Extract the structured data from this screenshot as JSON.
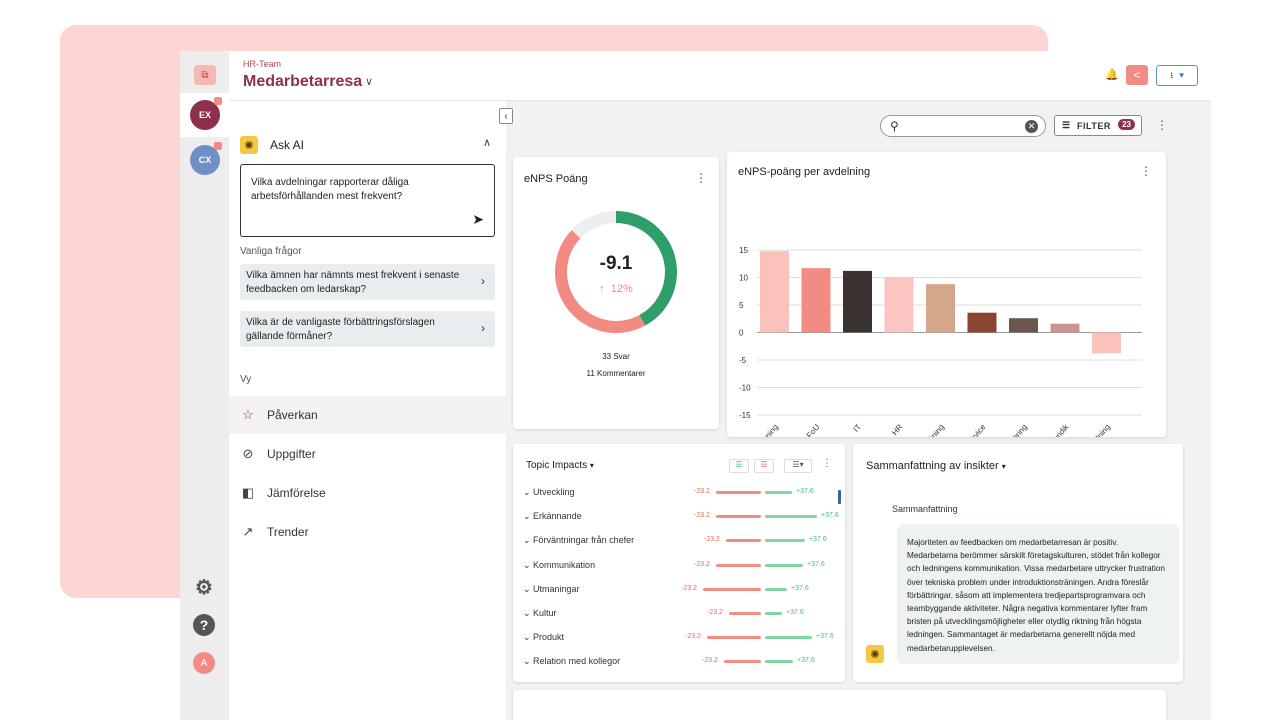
{
  "rail": {
    "workspaces": [
      {
        "initials": "EX",
        "color": "#8e2f4b"
      },
      {
        "initials": "CX",
        "color": "#6f8fc7"
      }
    ],
    "avatar_initial": "A",
    "icons": [
      "app-logo-icon",
      "more-vertical-icon",
      "settings-gear-icon",
      "help-icon"
    ]
  },
  "header": {
    "breadcrumb": "HR-Team",
    "title": "Medarbetarresa",
    "icons": [
      "bell-icon",
      "share-icon",
      "download-icon"
    ]
  },
  "ask_ai": {
    "label": "Ask AI",
    "question": "Vilka avdelningar rapporterar dåliga arbetsförhållanden mest frekvent?",
    "faq_title": "Vanliga frågor",
    "faqs": [
      "Vilka ämnen har nämnts mest frekvent i senaste feedbacken om ledarskap?",
      "Vilka är de vanligaste förbättringsförslagen gällande förmåner?"
    ]
  },
  "view": {
    "title": "Vy",
    "items": [
      {
        "label": "Påverkan",
        "icon": "star-icon",
        "active": true
      },
      {
        "label": "Uppgifter",
        "icon": "check-circle-icon",
        "active": false
      },
      {
        "label": "Jämförelse",
        "icon": "compare-icon",
        "active": false
      },
      {
        "label": "Trender",
        "icon": "trend-icon",
        "active": false
      }
    ]
  },
  "toolbar": {
    "filter_label": "FILTER",
    "filter_count": "23"
  },
  "enps": {
    "title": "eNPS Poäng",
    "score": "-9.1",
    "change": "12%",
    "responses": "33 Svar",
    "comments": "11 Kommentarer",
    "donut": {
      "green": 0.42,
      "red": 0.45,
      "grey": 0.13
    },
    "colors": {
      "green": "#2e9e6a",
      "red": "#f28b82",
      "grey": "#eeeeee"
    }
  },
  "chart_data": {
    "type": "bar",
    "title": "eNPS-poäng per avdelning",
    "categories": [
      "Redovisning",
      "FoU",
      "IT",
      "HR",
      "Försäljning",
      "Kund-service",
      "Marknads-föring",
      "Juridik",
      "Ledning"
    ],
    "values": [
      14.8,
      11.7,
      11.2,
      10.1,
      8.8,
      3.6,
      2.6,
      1.6,
      -3.8
    ],
    "colors": [
      "#fbc2bc",
      "#f28b82",
      "#3a3330",
      "#fbc6c2",
      "#d4a78a",
      "#8a4633",
      "#6e5550",
      "#c99591",
      "#fbc2bc"
    ],
    "ylim": [
      -15,
      15
    ],
    "yticks": [
      15,
      10,
      5,
      0,
      -5,
      -10,
      -15
    ],
    "grid": true
  },
  "topics": {
    "title": "Topic Impacts",
    "rows": [
      {
        "label": "Utveckling",
        "neg": "-23.2",
        "pos": "+37.6",
        "neg_frac": 0.45,
        "pos_frac": 0.27
      },
      {
        "label": "Erkännande",
        "neg": "-23.2",
        "pos": "+37.6",
        "neg_frac": 0.45,
        "pos_frac": 0.52
      },
      {
        "label": "Förväntningar från chefer",
        "neg": "-23.2",
        "pos": "+37.6",
        "neg_frac": 0.35,
        "pos_frac": 0.4
      },
      {
        "label": "Kommunikation",
        "neg": "-23.2",
        "pos": "+37.6",
        "neg_frac": 0.45,
        "pos_frac": 0.38
      },
      {
        "label": "Utmaningar",
        "neg": "-23.2",
        "pos": "+37.6",
        "neg_frac": 0.58,
        "pos_frac": 0.22
      },
      {
        "label": "Kultur",
        "neg": "-23.2",
        "pos": "+37.6",
        "neg_frac": 0.32,
        "pos_frac": 0.17
      },
      {
        "label": "Produkt",
        "neg": "-23.2",
        "pos": "+37.6",
        "neg_frac": 0.54,
        "pos_frac": 0.47
      },
      {
        "label": "Relation med kollegor",
        "neg": "-23.2",
        "pos": "+37.6",
        "neg_frac": 0.37,
        "pos_frac": 0.28
      }
    ]
  },
  "summary": {
    "title": "Sammanfattning av insikter",
    "subtitle": "Sammanfattning",
    "text": "Majoriteten av feedbacken om medarbetarresan är positiv. Medarbetarna berömmer särskilt företagskulturen, stödet från kollegor och ledningens kommunikation. Vissa medarbetare uttrycker frustration över tekniska problem under introduktionsträningen. Andra föreslår förbättringar, såsom att implementera tredjepartsprogramvara och teambyggande aktiviteter. Några negativa kommentarer lyfter fram bristen på utvecklingsmöjligheter eller otydlig riktning från högsta ledningen. Sammantaget är medarbetarna generellt nöjda med medarbetarupplevelsen."
  }
}
